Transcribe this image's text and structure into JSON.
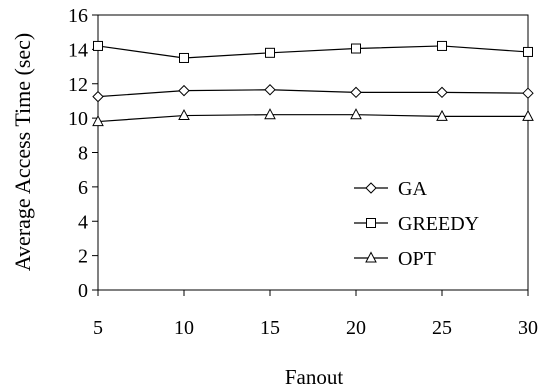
{
  "chart_data": {
    "type": "line",
    "title": "",
    "xlabel": "Fanout",
    "ylabel": "Average Access Time (sec)",
    "x": [
      5,
      10,
      15,
      20,
      25,
      30
    ],
    "x_ticks": [
      "5",
      "10",
      "15",
      "20",
      "25",
      "30"
    ],
    "y_ticks": [
      "0",
      "2",
      "4",
      "6",
      "8",
      "10",
      "12",
      "14",
      "16"
    ],
    "xlim": [
      5,
      30
    ],
    "ylim": [
      0,
      16
    ],
    "grid": false,
    "legend_position": "right",
    "series": [
      {
        "name": "GA",
        "marker": "diamond",
        "values": [
          11.25,
          11.6,
          11.65,
          11.5,
          11.5,
          11.45
        ]
      },
      {
        "name": "GREEDY",
        "marker": "square",
        "values": [
          14.2,
          13.5,
          13.8,
          14.05,
          14.2,
          13.85
        ]
      },
      {
        "name": "OPT",
        "marker": "triangle",
        "values": [
          9.8,
          10.15,
          10.2,
          10.2,
          10.1,
          10.1
        ]
      }
    ],
    "colors": {
      "line": "#000000",
      "marker_fill": "#ffffff",
      "background": "#ffffff"
    }
  }
}
